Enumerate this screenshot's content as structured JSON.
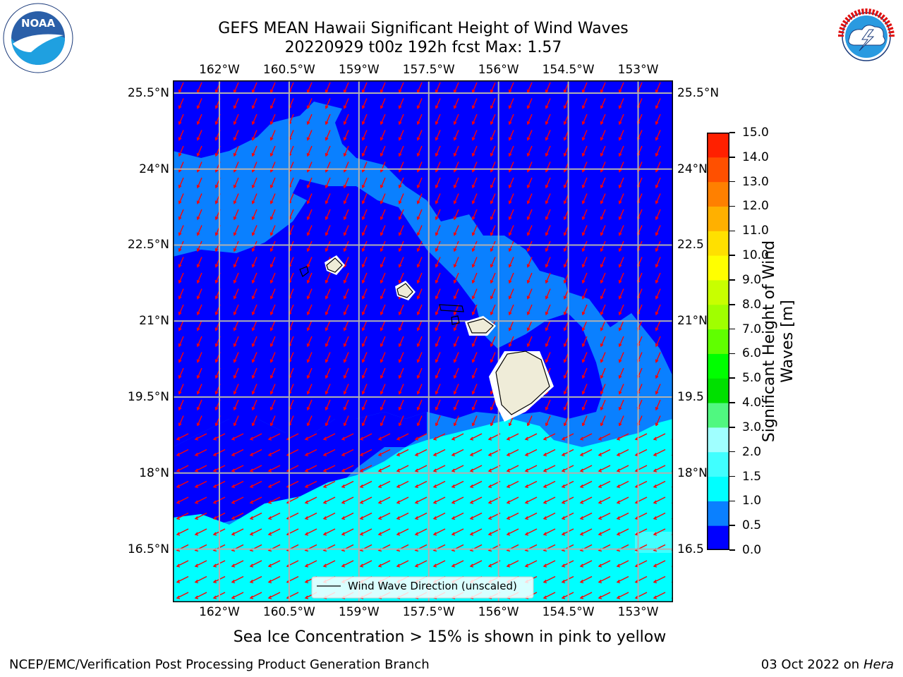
{
  "title": {
    "line1": "GEFS MEAN Hawaii Significant Height of Wind Waves",
    "line2": "20220929 t00z 192h fcst   Max: 1.57"
  },
  "logos": {
    "noaa": {
      "text": "NOAA",
      "ring": "NATIONAL OCEANIC AND ATMOSPHERIC ADMINISTRATION · U.S. DEPARTMENT OF COMMERCE"
    },
    "nws": {
      "ring": "NATIONAL WEATHER SERVICE"
    }
  },
  "map": {
    "lon_ticks": [
      "162°W",
      "160.5°W",
      "159°W",
      "157.5°W",
      "156°W",
      "154.5°W",
      "153°W"
    ],
    "lat_ticks": [
      "25.5°N",
      "24°N",
      "22.5°N",
      "21°N",
      "19.5°N",
      "18°N",
      "16.5°N"
    ],
    "lat_ticks_right": [
      "25.5°N",
      "24°N",
      "22.5",
      "21°N",
      "19.5",
      "18°N",
      "16.5"
    ],
    "lon_values": [
      -162,
      -160.5,
      -159,
      -157.5,
      -156,
      -154.5,
      -153
    ],
    "lat_values": [
      25.5,
      24,
      22.5,
      21,
      19.5,
      18,
      16.5
    ],
    "extent": {
      "lon": [
        -163,
        -152.25
      ],
      "lat": [
        15.45,
        25.75
      ]
    },
    "colors": {
      "ocean_0_05": "#0000ff",
      "ocean_05_1": "#0a80ff",
      "ocean_1_15": "#00ffff",
      "land": "#efecd8",
      "arrows": "#ff0000",
      "grid": "#b0b0b0"
    },
    "legend_label": "Wind Wave Direction (unscaled)"
  },
  "colorbar": {
    "label_line1": "Significant Height of Wind",
    "label_line2": "Waves [m]",
    "ticks": [
      "15.0",
      "14.0",
      "13.0",
      "12.0",
      "11.0",
      "10.0",
      "9.0",
      "8.0",
      "7.0",
      "6.0",
      "5.0",
      "4.0",
      "3.0",
      "2.0",
      "1.5",
      "1.0",
      "0.5",
      "0.0"
    ],
    "colors": [
      "#0000ff",
      "#0a80ff",
      "#00ffff",
      "#40ffff",
      "#a0ffff",
      "#50f880",
      "#00e000",
      "#00ff00",
      "#60ff00",
      "#a0ff00",
      "#c8ff00",
      "#ffff00",
      "#ffe000",
      "#ffb000",
      "#ff8000",
      "#ff5000",
      "#ff2000"
    ]
  },
  "subtitle": "Sea Ice Concentration > 15% is shown in pink to yellow",
  "footer": {
    "left": "NCEP/EMC/Verification Post Processing Product Generation Branch",
    "right_prefix": "03 Oct 2022 on ",
    "right_host": "Hera"
  }
}
